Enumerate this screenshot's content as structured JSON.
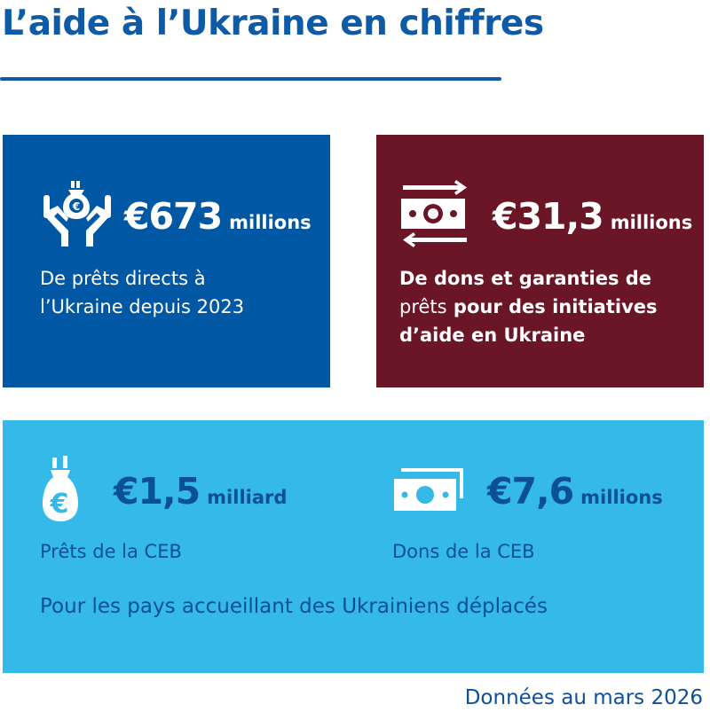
{
  "title": "L’aide à l’Ukraine en chiffres",
  "colors": {
    "title": "#0d5aa7",
    "box_loans": "#0057a3",
    "box_grants": "#6b1626",
    "box_ceb": "#35b9e8",
    "navy_text": "#0b4f94"
  },
  "cards": [
    {
      "icon": "hands-money-bag-icon",
      "amount": "€673",
      "unit": "millions",
      "description_lines": [
        "De prêts directs à",
        "l’Ukraine depuis 2023"
      ]
    },
    {
      "icon": "banknote-exchange-arrows-icon",
      "amount": "€31,3",
      "unit": "millions",
      "description_parts": [
        "De dons et garanties de",
        "prêts",
        " pour des initiatives",
        "d’aide en Ukraine"
      ]
    }
  ],
  "ceb": {
    "items": [
      {
        "icon": "euro-money-bag-icon",
        "amount": "€1,5",
        "unit": "milliard",
        "label": "Prêts de la CEB"
      },
      {
        "icon": "banknotes-icon",
        "amount": "€7,6",
        "unit": "millions",
        "label": "Dons de la CEB"
      }
    ],
    "note": "Pour les pays accueillant des Ukrainiens déplacés"
  },
  "footer": "Données au mars 2026"
}
